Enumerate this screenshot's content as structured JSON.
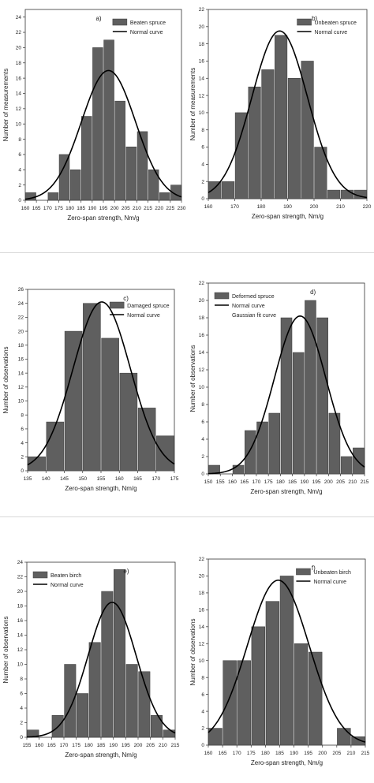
{
  "colors": {
    "bar": "#5f5f5f",
    "bar_edge": "#3a3a3a",
    "curve": "#000000",
    "axis": "#333333",
    "separator": "#d8d8d8"
  },
  "chart_data": [
    {
      "type": "bar",
      "panel_label": "a)",
      "xlabel": "Zero-span strength, Nm/g",
      "ylabel": "Number of measurements",
      "legend": [
        "Beaten spruce",
        "Normal curve"
      ],
      "legend_position": "top-right",
      "xlim": [
        160,
        230
      ],
      "ylim": [
        0,
        25
      ],
      "xticks": [
        160,
        165,
        170,
        175,
        180,
        185,
        190,
        195,
        200,
        205,
        210,
        215,
        220,
        225,
        230
      ],
      "yticks": [
        0,
        2,
        4,
        6,
        8,
        10,
        12,
        14,
        16,
        18,
        20,
        22,
        24
      ],
      "bin_width": 5,
      "bins": [
        160,
        165,
        170,
        175,
        180,
        185,
        190,
        195,
        200,
        205,
        210,
        215,
        220,
        225
      ],
      "values": [
        1,
        0,
        1,
        6,
        4,
        11,
        20,
        21,
        13,
        7,
        9,
        4,
        1,
        2
      ],
      "normal_curve": {
        "mean": 197.3,
        "sd": 12.1,
        "peak": 17
      }
    },
    {
      "type": "bar",
      "panel_label": "b)",
      "xlabel": "Zero-span strength, Nm/g",
      "ylabel": "Number of measurements",
      "legend": [
        "Unbeaten spruce",
        "Normal curve"
      ],
      "legend_position": "top-right",
      "xlim": [
        160,
        220
      ],
      "ylim": [
        0,
        22
      ],
      "xticks": [
        160,
        170,
        180,
        190,
        200,
        210,
        220
      ],
      "yticks": [
        0,
        2,
        4,
        6,
        8,
        10,
        12,
        14,
        16,
        18,
        20,
        22
      ],
      "bin_width": 5,
      "bins": [
        160,
        165,
        170,
        175,
        180,
        185,
        190,
        195,
        200,
        205,
        210,
        215
      ],
      "values": [
        2,
        2,
        10,
        13,
        15,
        19,
        14,
        16,
        6,
        1,
        1,
        1
      ],
      "normal_curve": {
        "mean": 187,
        "sd": 10.5,
        "peak": 19.5
      }
    },
    {
      "type": "bar",
      "panel_label": "c)",
      "xlabel": "Zero-span strength, Nm/g",
      "ylabel": "Number of observations",
      "legend": [
        "Damaged spruce",
        "Normal curve"
      ],
      "legend_position": "top-right",
      "xlim": [
        135,
        175
      ],
      "ylim": [
        0,
        26
      ],
      "xticks": [
        135,
        140,
        145,
        150,
        155,
        160,
        165,
        170,
        175
      ],
      "yticks": [
        0,
        2,
        4,
        6,
        8,
        10,
        12,
        14,
        16,
        18,
        20,
        22,
        24,
        26
      ],
      "bin_width": 5,
      "bins": [
        135,
        140,
        145,
        150,
        155,
        160,
        165,
        170
      ],
      "values": [
        2,
        7,
        20,
        24,
        19,
        14,
        9,
        5
      ],
      "normal_curve": {
        "mean": 155.2,
        "sd": 7.8,
        "peak": 24.2
      }
    },
    {
      "type": "bar",
      "panel_label": "d)",
      "xlabel": "Zero-span strength, Nm/g",
      "ylabel": "Number of observations",
      "legend": [
        "Deformed spruce",
        "Normal curve",
        "Gaussian fit curve"
      ],
      "legend_position": "top-left",
      "xlim": [
        150,
        215
      ],
      "ylim": [
        0,
        22
      ],
      "xticks": [
        150,
        155,
        160,
        165,
        170,
        175,
        180,
        185,
        190,
        195,
        200,
        205,
        210,
        215
      ],
      "yticks": [
        0,
        2,
        4,
        6,
        8,
        10,
        12,
        14,
        16,
        18,
        20,
        22
      ],
      "bin_width": 5,
      "bins": [
        150,
        155,
        160,
        165,
        170,
        175,
        180,
        185,
        190,
        195,
        200,
        205,
        210
      ],
      "values": [
        1,
        0,
        1,
        5,
        6,
        7,
        18,
        14,
        20,
        18,
        7,
        2,
        3
      ],
      "normal_curve": {
        "mean": 188.2,
        "sd": 10.7,
        "peak": 18.2
      }
    },
    {
      "type": "bar",
      "panel_label": "e)",
      "xlabel": "Zero-span strength, Nm/g",
      "ylabel": "Number of observations",
      "legend": [
        "Beaten birch",
        "Normal curve"
      ],
      "legend_position": "top-left",
      "xlim": [
        155,
        215
      ],
      "ylim": [
        0,
        24
      ],
      "xticks": [
        155,
        160,
        165,
        170,
        175,
        180,
        185,
        190,
        195,
        200,
        205,
        210,
        215
      ],
      "yticks": [
        0,
        2,
        4,
        6,
        8,
        10,
        12,
        14,
        16,
        18,
        20,
        22,
        24
      ],
      "bin_width": 5,
      "bins": [
        155,
        160,
        165,
        170,
        175,
        180,
        185,
        190,
        195,
        200,
        205,
        210
      ],
      "values": [
        1,
        0,
        3,
        10,
        6,
        13,
        20,
        23,
        10,
        9,
        3,
        1
      ],
      "normal_curve": {
        "mean": 189.5,
        "sd": 9.7,
        "peak": 18.5
      }
    },
    {
      "type": "bar",
      "panel_label": "f)",
      "xlabel": "Zero-span strength, Nm/g",
      "ylabel": "Number of observations",
      "legend": [
        "Unbeaten birch",
        "Normal curve"
      ],
      "legend_position": "top-right",
      "xlim": [
        160,
        215
      ],
      "ylim": [
        0,
        22
      ],
      "xticks": [
        160,
        165,
        170,
        175,
        180,
        185,
        190,
        195,
        200,
        205,
        210,
        215
      ],
      "yticks": [
        0,
        2,
        4,
        6,
        8,
        10,
        12,
        14,
        16,
        18,
        20,
        22
      ],
      "bin_width": 5,
      "bins": [
        160,
        165,
        170,
        175,
        180,
        185,
        190,
        195,
        200,
        205,
        210
      ],
      "values": [
        2,
        10,
        10,
        14,
        17,
        20,
        12,
        11,
        0,
        2,
        1
      ],
      "normal_curve": {
        "mean": 184.5,
        "sd": 10.8,
        "peak": 19.5
      }
    }
  ]
}
